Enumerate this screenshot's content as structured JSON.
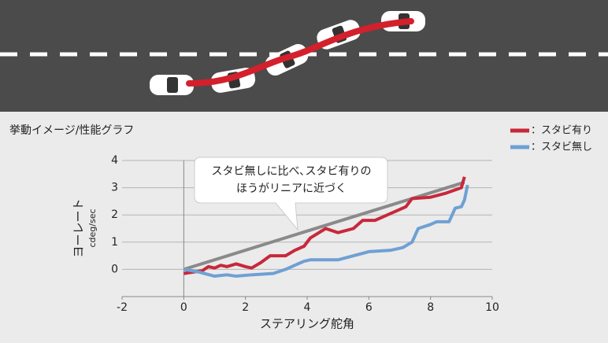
{
  "chart_data": {
    "type": "line",
    "title": "挙動イメージ/性能グラフ",
    "xlabel": "ステアリング舵角",
    "ylabel": "ヨーレート",
    "yunit": "cdeg/sec",
    "annotation": [
      "スタビ無しに比べ､スタビ有りの",
      "ほうがリニアに近づく"
    ],
    "xlim": [
      -2,
      10
    ],
    "xticks": [
      -2,
      0,
      2,
      4,
      6,
      8,
      10
    ],
    "ylim": [
      -1,
      4
    ],
    "yticks": [
      0,
      1,
      2,
      3,
      4
    ],
    "grid": true,
    "legend": "upper right",
    "series": [
      {
        "color": "#8a8a8a",
        "x": [
          0,
          9.1
        ],
        "values": [
          0,
          3.2
        ]
      },
      {
        "name": "：スタビ有り",
        "color": "#c8283a",
        "x": [
          0,
          0.3,
          0.6,
          0.8,
          1,
          1.2,
          1.4,
          1.7,
          2,
          2.2,
          2.5,
          2.8,
          3.3,
          3.6,
          3.9,
          4.1,
          4.6,
          5,
          5.5,
          5.8,
          6.2,
          6.6,
          7,
          7.2,
          7.4,
          8,
          8.5,
          9,
          9.1
        ],
        "values": [
          -0.15,
          -0.1,
          -0.05,
          0.1,
          0.05,
          0.15,
          0.1,
          0.2,
          0.1,
          0.05,
          0.25,
          0.5,
          0.5,
          0.7,
          0.85,
          1.15,
          1.5,
          1.35,
          1.5,
          1.8,
          1.8,
          2.0,
          2.2,
          2.3,
          2.6,
          2.65,
          2.8,
          3.0,
          3.4
        ]
      },
      {
        "name": "：スタビ無し",
        "color": "#6fa0d4",
        "x": [
          0,
          0.5,
          1,
          1.4,
          1.7,
          2.2,
          2.9,
          3.3,
          3.6,
          3.9,
          4.1,
          5,
          6,
          6.7,
          7.1,
          7.4,
          7.6,
          8,
          8.2,
          8.6,
          8.8,
          9,
          9.1,
          9.2
        ],
        "values": [
          0,
          -0.1,
          -0.25,
          -0.2,
          -0.25,
          -0.2,
          -0.15,
          0,
          0.15,
          0.3,
          0.35,
          0.35,
          0.65,
          0.7,
          0.8,
          1.0,
          1.5,
          1.65,
          1.75,
          1.75,
          2.25,
          2.3,
          2.55,
          3.1
        ]
      }
    ]
  }
}
